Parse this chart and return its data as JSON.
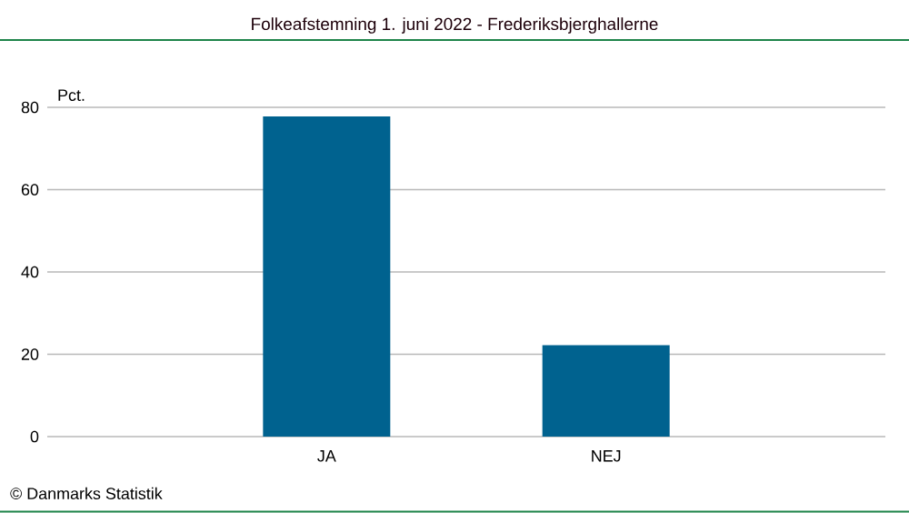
{
  "chart_data": {
    "type": "bar",
    "title": "Folkeafstemning 1. juni 2022 - Frederiksbjerghallerne",
    "ylabel": "Pct.",
    "categories": [
      "JA",
      "NEJ"
    ],
    "values": [
      77.8,
      22.2
    ],
    "color": "#00628f",
    "ylim": [
      0,
      80
    ],
    "yticks": [
      0,
      20,
      40,
      60,
      80
    ],
    "grid": "y",
    "annotations": [
      "© Danmarks Statistik"
    ]
  }
}
